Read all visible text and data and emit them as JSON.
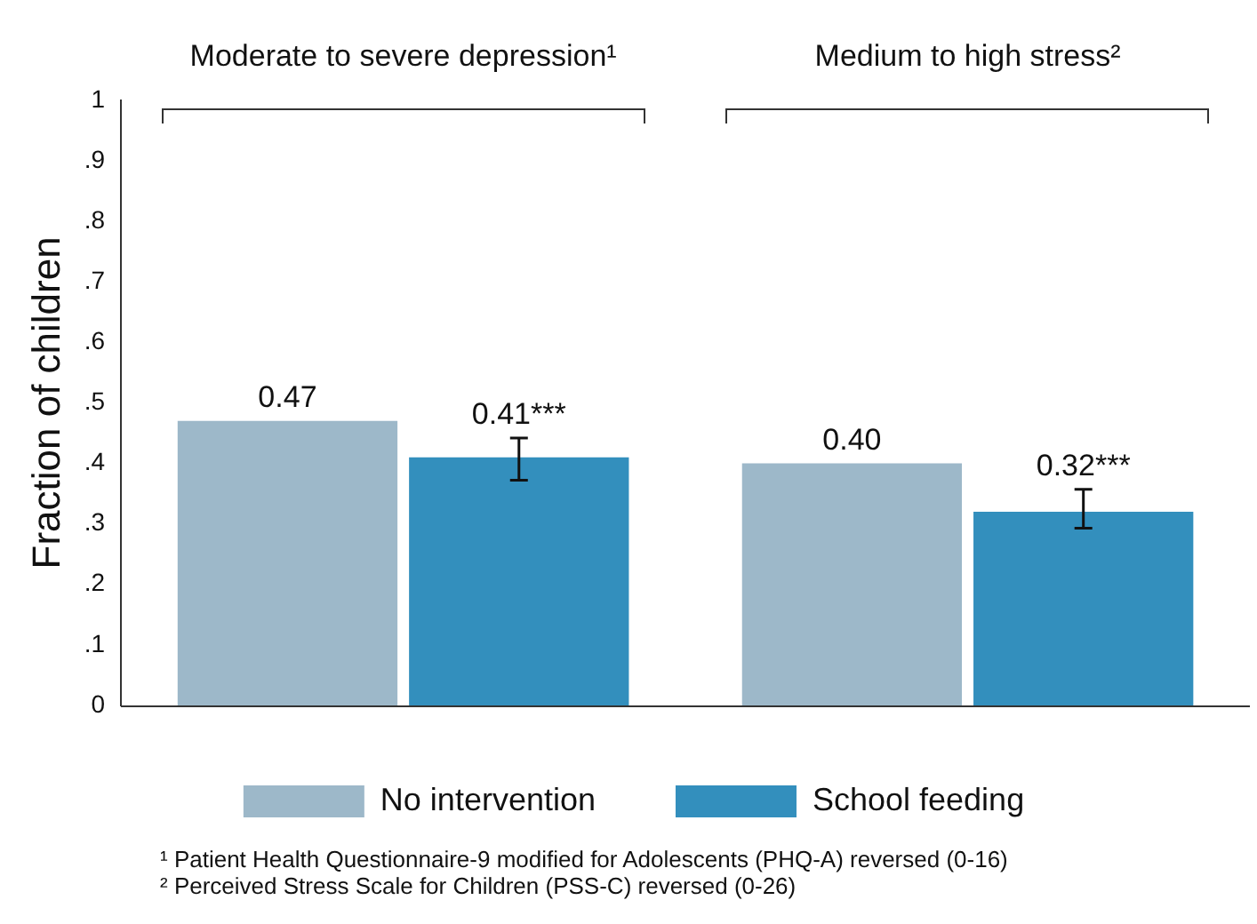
{
  "chart_data": {
    "type": "bar",
    "categories": [
      "Moderate to severe depression¹",
      "Medium to high stress²"
    ],
    "ylabel": "Fraction of children",
    "ylim": [
      0,
      1
    ],
    "yticks": [
      0,
      {
        "value": 0.1,
        "label": ".1"
      },
      {
        "value": 0.2,
        "label": ".2"
      },
      {
        "value": 0.3,
        "label": ".3"
      },
      {
        "value": 0.4,
        "label": ".4"
      },
      {
        "value": 0.5,
        "label": ".5"
      },
      {
        "value": 0.6,
        "label": ".6"
      },
      {
        "value": 0.7,
        "label": ".7"
      },
      {
        "value": 0.8,
        "label": ".8"
      },
      {
        "value": 0.9,
        "label": ".9"
      },
      1
    ],
    "series": [
      {
        "name": "No intervention",
        "color": "#9db8c9",
        "values": [
          0.47,
          0.4
        ],
        "value_labels": [
          "0.47",
          "0.40"
        ]
      },
      {
        "name": "School feeding",
        "color": "#338fbd",
        "values": [
          0.41,
          0.32
        ],
        "value_labels": [
          "0.41***",
          "0.32***"
        ],
        "errors": [
          [
            0.372,
            0.442
          ],
          [
            0.293,
            0.357
          ]
        ]
      }
    ],
    "legend": "bottom",
    "grid": false,
    "annotations": [
      "¹ Patient Health Questionnaire-9 modified for Adolescents (PHQ-A) reversed (0-16)",
      "² Perceived Stress Scale for Children (PSS-C) reversed (0-26)"
    ]
  }
}
